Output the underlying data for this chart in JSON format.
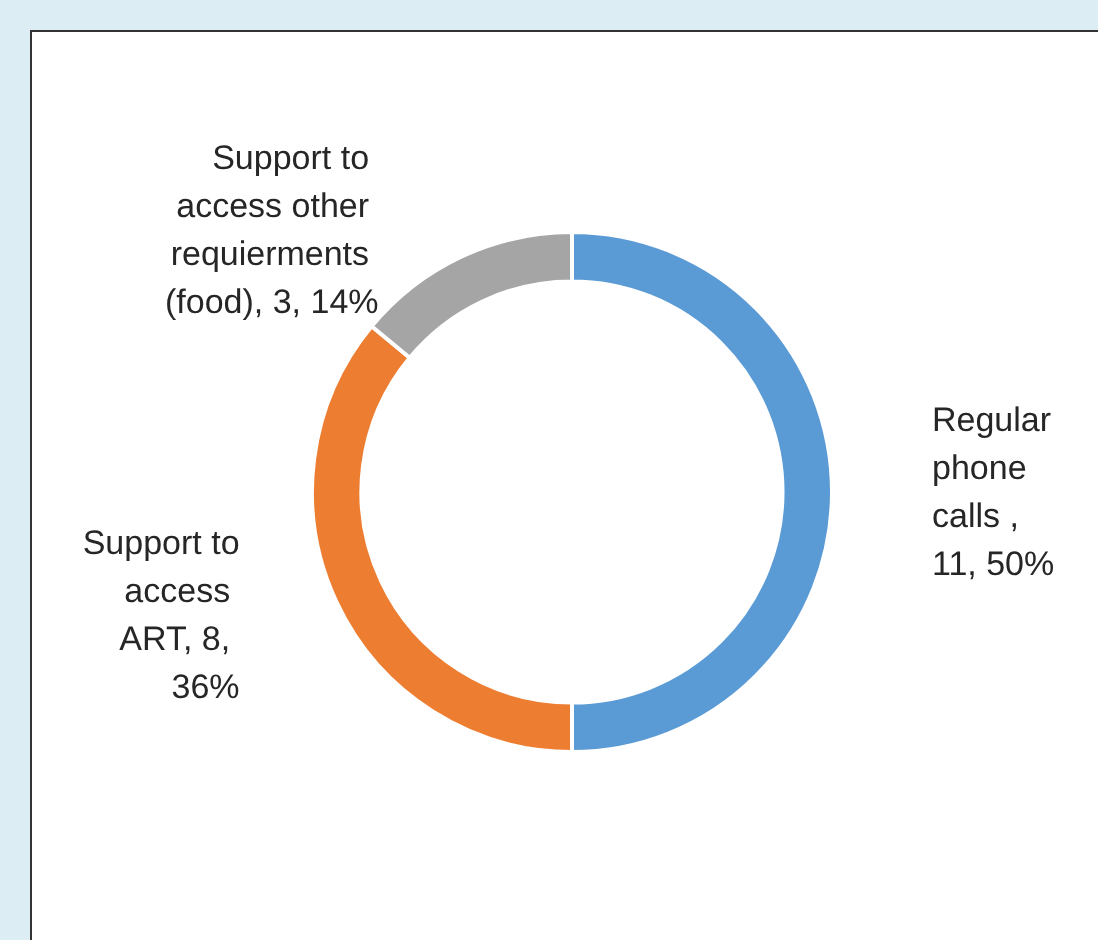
{
  "chart_data": {
    "type": "donut",
    "categories": [
      "Regular phone calls , 11, 50%",
      "Support to access ART, 8, 36%",
      "Support to access other requierments (food), 3, 14%"
    ],
    "values": [
      50,
      36,
      14
    ],
    "colors": [
      "#5b9bd5",
      "#ed7d31",
      "#a5a5a5"
    ],
    "legend": false
  }
}
